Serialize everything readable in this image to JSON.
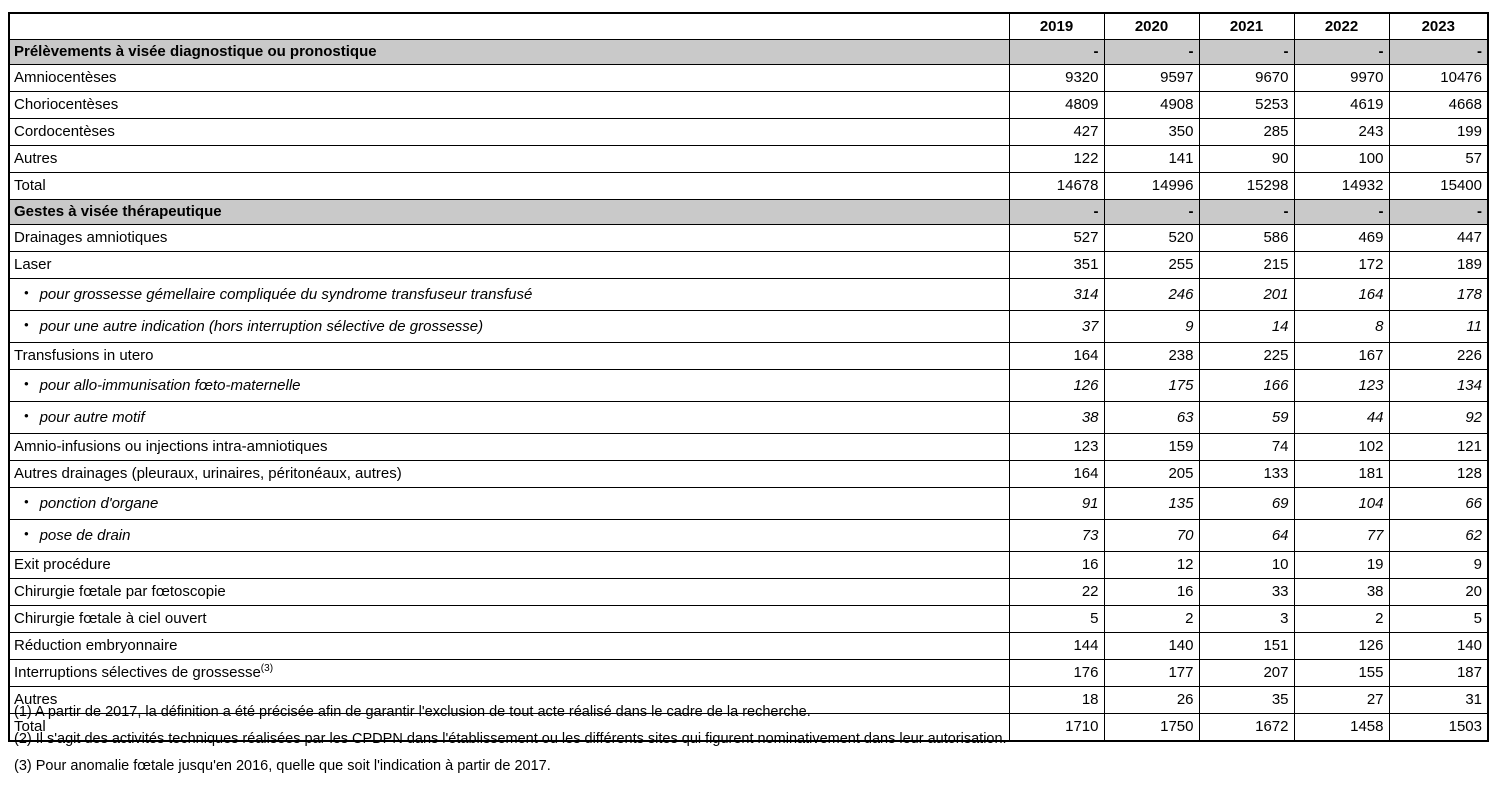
{
  "table": {
    "columns": [
      "2019",
      "2020",
      "2021",
      "2022",
      "2023"
    ],
    "bullet_char": "•",
    "section_bg_color": "#C9C9C9",
    "border_color": "#000000",
    "rows": [
      {
        "type": "section",
        "label": "Prélèvements à visée diagnostique ou pronostique",
        "values": [
          "-",
          "-",
          "-",
          "-",
          "-"
        ]
      },
      {
        "type": "data",
        "label": "Amniocentèses",
        "values": [
          "9320",
          "9597",
          "9670",
          "9970",
          "10476"
        ]
      },
      {
        "type": "data",
        "label": "Choriocentèses",
        "values": [
          "4809",
          "4908",
          "5253",
          "4619",
          "4668"
        ]
      },
      {
        "type": "data",
        "label": "Cordocentèses",
        "values": [
          "427",
          "350",
          "285",
          "243",
          "199"
        ]
      },
      {
        "type": "data",
        "label": "Autres",
        "values": [
          "122",
          "141",
          "90",
          "100",
          "57"
        ]
      },
      {
        "type": "data",
        "label": "Total",
        "values": [
          "14678",
          "14996",
          "15298",
          "14932",
          "15400"
        ]
      },
      {
        "type": "section",
        "label": "Gestes à visée thérapeutique",
        "values": [
          "-",
          "-",
          "-",
          "-",
          "-"
        ]
      },
      {
        "type": "data",
        "label": "Drainages amniotiques",
        "values": [
          "527",
          "520",
          "586",
          "469",
          "447"
        ]
      },
      {
        "type": "data",
        "label": "Laser",
        "values": [
          "351",
          "255",
          "215",
          "172",
          "189"
        ]
      },
      {
        "type": "sub",
        "label": "pour grossesse gémellaire compliquée du syndrome transfuseur transfusé",
        "values": [
          "314",
          "246",
          "201",
          "164",
          "178"
        ]
      },
      {
        "type": "sub",
        "label": "pour une autre indication (hors interruption sélective de grossesse)",
        "values": [
          "37",
          "9",
          "14",
          "8",
          "11"
        ]
      },
      {
        "type": "data",
        "label": "Transfusions in utero",
        "values": [
          "164",
          "238",
          "225",
          "167",
          "226"
        ]
      },
      {
        "type": "sub",
        "label": "pour allo-immunisation fœto-maternelle",
        "values": [
          "126",
          "175",
          "166",
          "123",
          "134"
        ]
      },
      {
        "type": "sub",
        "label": "pour autre motif",
        "values": [
          "38",
          "63",
          "59",
          "44",
          "92"
        ]
      },
      {
        "type": "data",
        "label": "Amnio-infusions ou injections intra-amniotiques",
        "values": [
          "123",
          "159",
          "74",
          "102",
          "121"
        ]
      },
      {
        "type": "data",
        "label": "Autres drainages (pleuraux, urinaires, péritonéaux, autres)",
        "values": [
          "164",
          "205",
          "133",
          "181",
          "128"
        ]
      },
      {
        "type": "sub",
        "label": "ponction d'organe",
        "values": [
          "91",
          "135",
          "69",
          "104",
          "66"
        ]
      },
      {
        "type": "sub",
        "label": "pose de drain",
        "values": [
          "73",
          "70",
          "64",
          "77",
          "62"
        ]
      },
      {
        "type": "data",
        "label": "Exit procédure",
        "values": [
          "16",
          "12",
          "10",
          "19",
          "9"
        ]
      },
      {
        "type": "data",
        "label": "Chirurgie fœtale par fœtoscopie",
        "values": [
          "22",
          "16",
          "33",
          "38",
          "20"
        ]
      },
      {
        "type": "data",
        "label": "Chirurgie fœtale à ciel ouvert",
        "values": [
          "5",
          "2",
          "3",
          "2",
          "5"
        ]
      },
      {
        "type": "data",
        "label": "Réduction embryonnaire",
        "values": [
          "144",
          "140",
          "151",
          "126",
          "140"
        ]
      },
      {
        "type": "data",
        "label": "Interruptions sélectives de grossesse",
        "sup": "(3)",
        "values": [
          "176",
          "177",
          "207",
          "155",
          "187"
        ]
      },
      {
        "type": "data",
        "label": "Autres",
        "values": [
          "18",
          "26",
          "35",
          "27",
          "31"
        ]
      },
      {
        "type": "data",
        "label": "Total",
        "values": [
          "1710",
          "1750",
          "1672",
          "1458",
          "1503"
        ]
      }
    ]
  },
  "footnotes": [
    "(1) A partir de 2017, la définition a été précisée afin de garantir l'exclusion de tout acte réalisé dans le cadre de la recherche.",
    "(2) Il s'agit des activités techniques réalisées par les CPDPN dans l'établissement ou les différents sites qui figurent nominativement dans leur autorisation.",
    "(3) Pour anomalie fœtale jusqu'en 2016, quelle que soit l'indication à partir de 2017."
  ]
}
